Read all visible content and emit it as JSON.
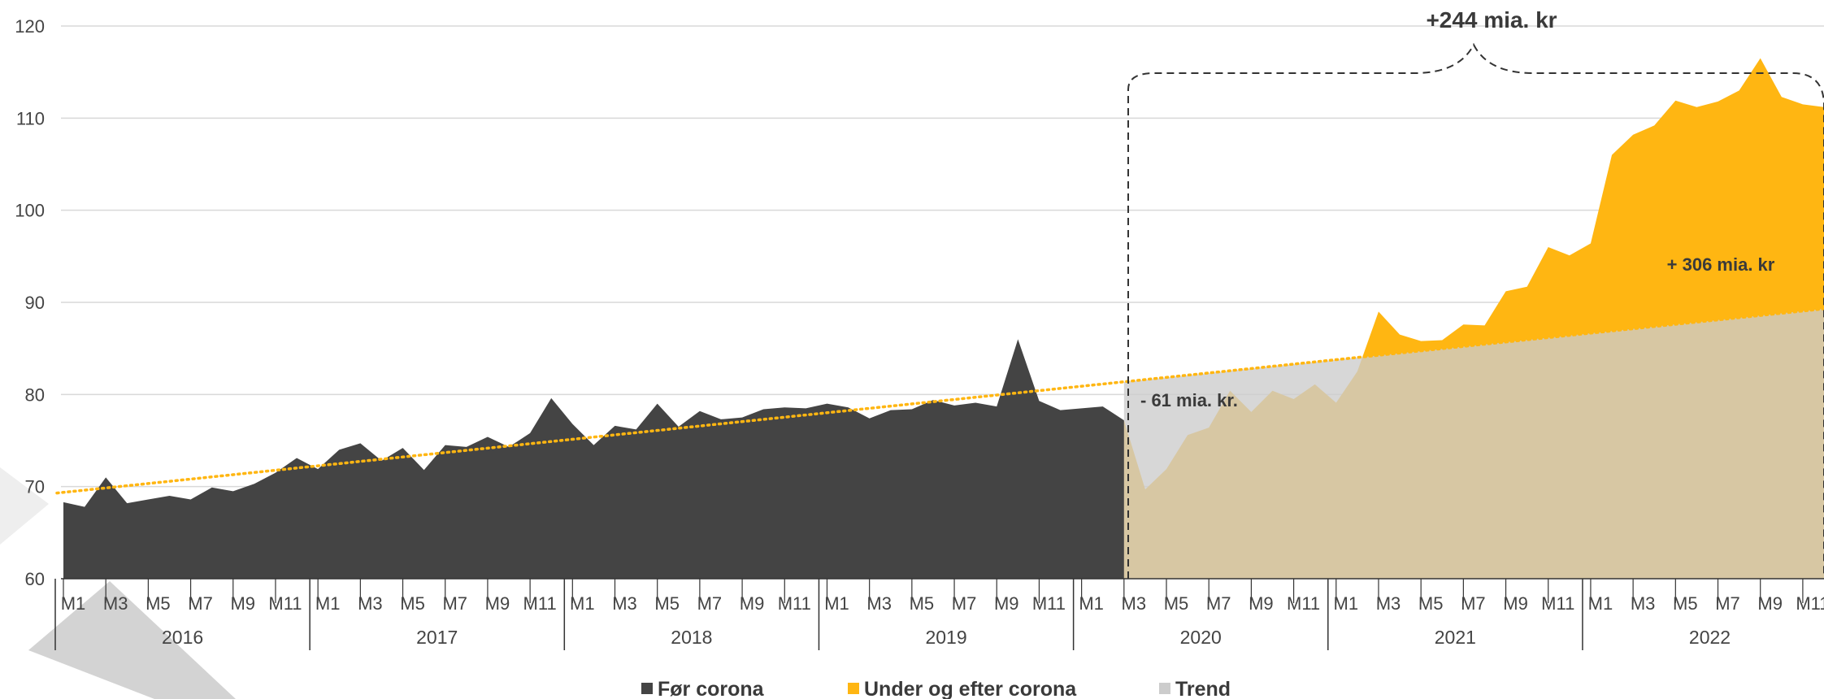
{
  "chart_data": {
    "type": "area",
    "title": "",
    "xlabel": "",
    "ylabel": "",
    "ylim": [
      60,
      120
    ],
    "yticks": [
      60,
      70,
      80,
      90,
      100,
      110,
      120
    ],
    "grid": true,
    "legend_position": "bottom",
    "colors": {
      "before": "#444444",
      "after": "#ffb612",
      "trend_fill": "#cccccc",
      "trend_line": "#ffb612",
      "grid": "#d9d9d9",
      "axis": "#333333"
    },
    "years": [
      "2016",
      "2017",
      "2018",
      "2019",
      "2020",
      "2021",
      "2022"
    ],
    "month_labels": [
      "M1",
      "",
      "M3",
      "",
      "M5",
      "",
      "M7",
      "",
      "M9",
      "",
      "M11",
      ""
    ],
    "series": [
      {
        "name": "Før corona",
        "start": "2016-01",
        "values": [
          68.3,
          67.8,
          71.0,
          68.2,
          68.6,
          69.0,
          68.6,
          69.9,
          69.5,
          70.3,
          71.5,
          73.1,
          71.9,
          74.0,
          74.7,
          72.8,
          74.2,
          71.8,
          74.5,
          74.3,
          75.4,
          74.3,
          75.8,
          79.6,
          76.8,
          74.5,
          76.6,
          76.2,
          79.0,
          76.5,
          78.2,
          77.3,
          77.5,
          78.4,
          78.6,
          78.5,
          79.0,
          78.6,
          77.4,
          78.3,
          78.4,
          79.4,
          78.8,
          79.1,
          78.7,
          86.0,
          79.3,
          78.3,
          78.5,
          78.7,
          77.2
        ]
      },
      {
        "name": "Under og efter corona",
        "start": "2020-03",
        "values": [
          77.2,
          69.7,
          71.9,
          75.6,
          76.4,
          80.4,
          78.1,
          80.4,
          79.5,
          81.1,
          79.1,
          82.5,
          89.0,
          86.5,
          85.8,
          85.9,
          87.6,
          87.5,
          91.2,
          91.7,
          96.0,
          95.1,
          96.4,
          106.0,
          108.2,
          109.2,
          111.9,
          111.2,
          111.8,
          113.0,
          116.5,
          112.3,
          111.5,
          111.2
        ]
      },
      {
        "name": "Trend",
        "start": "2016-01",
        "end": "2022-12",
        "values_linear": [
          69.3,
          89.3
        ]
      }
    ],
    "annotations": {
      "bracket_label": "+244 mia. kr",
      "above_trend": "+ 306 mia. kr",
      "below_trend": "- 61 mia. kr."
    }
  }
}
